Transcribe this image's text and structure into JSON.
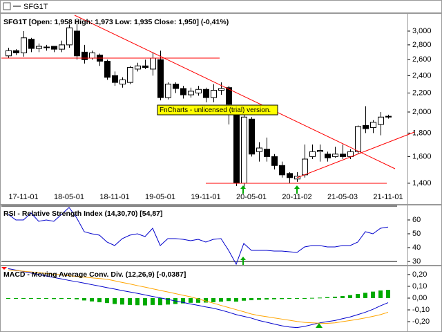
{
  "chart_data": [
    {
      "type": "candlestick",
      "title": "SFG1T [Open: 1,958 High: 1,973 Low: 1,935 Close: 1,950] (-0,41%)",
      "categories": [
        null,
        null,
        "17-11-01",
        null,
        null,
        null,
        null,
        null,
        "18-05-01",
        null,
        null,
        null,
        null,
        null,
        "18-11-01",
        null,
        null,
        null,
        null,
        null,
        "19-05-01",
        null,
        null,
        null,
        null,
        null,
        "19-11-01",
        null,
        null,
        null,
        null,
        null,
        "20-05-01",
        null,
        null,
        null,
        null,
        null,
        "20-11-02",
        null,
        null,
        null,
        null,
        null,
        "21-05-03",
        null,
        null,
        null,
        null,
        null,
        "21-11-01"
      ],
      "series": [
        {
          "name": "SFG1T",
          "up_color": "#ffffff",
          "down_color": "#000000",
          "open": [
            2650,
            2720,
            2690,
            2880,
            2750,
            2770,
            2780,
            2740,
            2800,
            3000,
            2700,
            2620,
            2660,
            2580,
            2400,
            2300,
            2320,
            2480,
            2520,
            2480,
            2600,
            2150,
            2300,
            2250,
            2180,
            2200,
            2240,
            2150,
            2230,
            2260,
            2000,
            1400,
            1930,
            1640,
            1660,
            1600,
            1530,
            1470,
            1430,
            1460,
            1600,
            1640,
            1620,
            1600,
            1620,
            1600,
            1640,
            1870,
            1850,
            1880,
            1958
          ],
          "high": [
            2760,
            2740,
            3000,
            2900,
            2820,
            2800,
            2780,
            2860,
            3100,
            3200,
            2800,
            2720,
            2680,
            2600,
            2450,
            2380,
            2520,
            2560,
            2600,
            2700,
            2720,
            2320,
            2320,
            2280,
            2260,
            2280,
            2260,
            2300,
            2320,
            2280,
            2050,
            1980,
            1950,
            1720,
            1760,
            1620,
            1560,
            1480,
            1480,
            1700,
            1700,
            1700,
            1640,
            1680,
            1700,
            1660,
            1870,
            2060,
            1920,
            2000,
            1973
          ],
          "low": [
            2620,
            2660,
            2640,
            2700,
            2700,
            2720,
            2700,
            2700,
            2760,
            2600,
            2550,
            2600,
            2520,
            2350,
            2280,
            2260,
            2300,
            2450,
            2480,
            2400,
            2120,
            2130,
            2200,
            2140,
            2150,
            2170,
            2100,
            2100,
            2180,
            1880,
            1380,
            1370,
            1600,
            1560,
            1560,
            1500,
            1440,
            1400,
            1410,
            1440,
            1580,
            1560,
            1560,
            1590,
            1580,
            1580,
            1620,
            1800,
            1800,
            1780,
            1935
          ],
          "close": [
            2720,
            2690,
            2900,
            2750,
            2780,
            2760,
            2740,
            2800,
            3050,
            2650,
            2600,
            2690,
            2580,
            2380,
            2320,
            2350,
            2500,
            2520,
            2500,
            2620,
            2150,
            2300,
            2250,
            2180,
            2220,
            2240,
            2150,
            2230,
            2250,
            2080,
            1400,
            1950,
            1620,
            1670,
            1600,
            1530,
            1460,
            1440,
            1450,
            1580,
            1640,
            1650,
            1590,
            1620,
            1600,
            1640,
            1860,
            1840,
            1900,
            1950,
            1950
          ]
        }
      ],
      "log_scale": true,
      "ylim": [
        1366,
        3271
      ],
      "yticks": [
        {
          "value": 1400,
          "label": "1,400"
        },
        {
          "value": 1600,
          "label": "1,600"
        },
        {
          "value": 1800,
          "label": "1,800"
        },
        {
          "value": 2000,
          "label": "2,000"
        },
        {
          "value": 2200,
          "label": "2,200"
        },
        {
          "value": 2400,
          "label": "2,400"
        },
        {
          "value": 2600,
          "label": "2,600"
        },
        {
          "value": 2800,
          "label": "2,800"
        },
        {
          "value": 3000,
          "label": "3,000"
        }
      ],
      "watermark": "FnCharts - unlicensed (trial) version."
    },
    {
      "type": "line",
      "title": "RSI - Relative Strength Index (14,30,70) [54,87]",
      "color": "#0000cc",
      "values": [
        64,
        60,
        60,
        65,
        59,
        60,
        59,
        64,
        69,
        61.5,
        51.5,
        50,
        49,
        44,
        41.5,
        46.5,
        49,
        50,
        48,
        54,
        41.5,
        46.5,
        46.5,
        46,
        45,
        46,
        44,
        46,
        46.5,
        38,
        28,
        43,
        38,
        38,
        38,
        37.5,
        37.5,
        37,
        36.5,
        40.5,
        41.5,
        41.5,
        40.5,
        40.5,
        41.5,
        41.5,
        44,
        51.5,
        50,
        54,
        54.87
      ],
      "levels": [
        30,
        70
      ],
      "ylim": [
        27.5,
        70.5
      ],
      "yticks": [
        30,
        40,
        50,
        60
      ]
    },
    {
      "type": "macd",
      "title": "MACD - Moving Average Conv. Div. (12,26,9) [-0,0387]",
      "series": [
        {
          "style": "bar",
          "color": "#00aa00",
          "values": [
            -0.002,
            -0.004,
            -0.005,
            -0.006,
            -0.005,
            -0.006,
            -0.008,
            -0.007,
            -0.005,
            -0.01,
            -0.02,
            -0.028,
            -0.035,
            -0.042,
            -0.05,
            -0.055,
            -0.058,
            -0.06,
            -0.062,
            -0.058,
            -0.06,
            -0.055,
            -0.05,
            -0.045,
            -0.04,
            -0.04,
            -0.038,
            -0.035,
            -0.03,
            -0.025,
            -0.03,
            -0.022,
            -0.018,
            -0.015,
            -0.012,
            -0.01,
            -0.008,
            -0.006,
            -0.004,
            -0.002,
            0.002,
            0.004,
            0.008,
            0.012,
            0.018,
            0.025,
            0.035,
            0.045,
            0.055,
            0.065,
            0.07
          ]
        },
        {
          "style": "line",
          "color": "#0000cc",
          "values": [
            0.25,
            0.238,
            0.225,
            0.213,
            0.2,
            0.188,
            0.175,
            0.163,
            0.15,
            0.139,
            0.127,
            0.114,
            0.102,
            0.089,
            0.077,
            0.064,
            0.052,
            0.04,
            0.027,
            0.014,
            0.002,
            -0.011,
            -0.024,
            -0.037,
            -0.05,
            -0.062,
            -0.075,
            -0.086,
            -0.102,
            -0.12,
            -0.14,
            -0.155,
            -0.17,
            -0.19,
            -0.205,
            -0.22,
            -0.235,
            -0.245,
            -0.25,
            -0.24,
            -0.225,
            -0.21,
            -0.2,
            -0.19,
            -0.175,
            -0.16,
            -0.14,
            -0.12,
            -0.095,
            -0.065,
            -0.0387
          ]
        },
        {
          "style": "line",
          "color": "#ffa500",
          "values": [
            0.24,
            0.234,
            0.228,
            0.222,
            0.216,
            0.21,
            0.203,
            0.197,
            0.19,
            0.184,
            0.178,
            0.172,
            0.166,
            0.16,
            0.147,
            0.133,
            0.12,
            0.106,
            0.093,
            0.079,
            0.065,
            0.052,
            0.038,
            0.024,
            0.011,
            -0.007,
            -0.025,
            -0.043,
            -0.062,
            -0.08,
            -0.098,
            -0.116,
            -0.135,
            -0.148,
            -0.158,
            -0.168,
            -0.178,
            -0.188,
            -0.198,
            -0.206,
            -0.21,
            -0.213,
            -0.214,
            -0.21,
            -0.2,
            -0.19,
            -0.18,
            -0.168,
            -0.155,
            -0.14,
            -0.12
          ]
        }
      ],
      "ylim": [
        -0.276,
        0.27
      ],
      "yticks": [
        {
          "value": -0.2,
          "label": "-0,20"
        },
        {
          "value": -0.1,
          "label": "-0,10"
        },
        {
          "value": 0,
          "label": "0,00"
        },
        {
          "value": 0.1,
          "label": "0,10"
        },
        {
          "value": 0.2,
          "label": "0,20"
        }
      ]
    }
  ]
}
